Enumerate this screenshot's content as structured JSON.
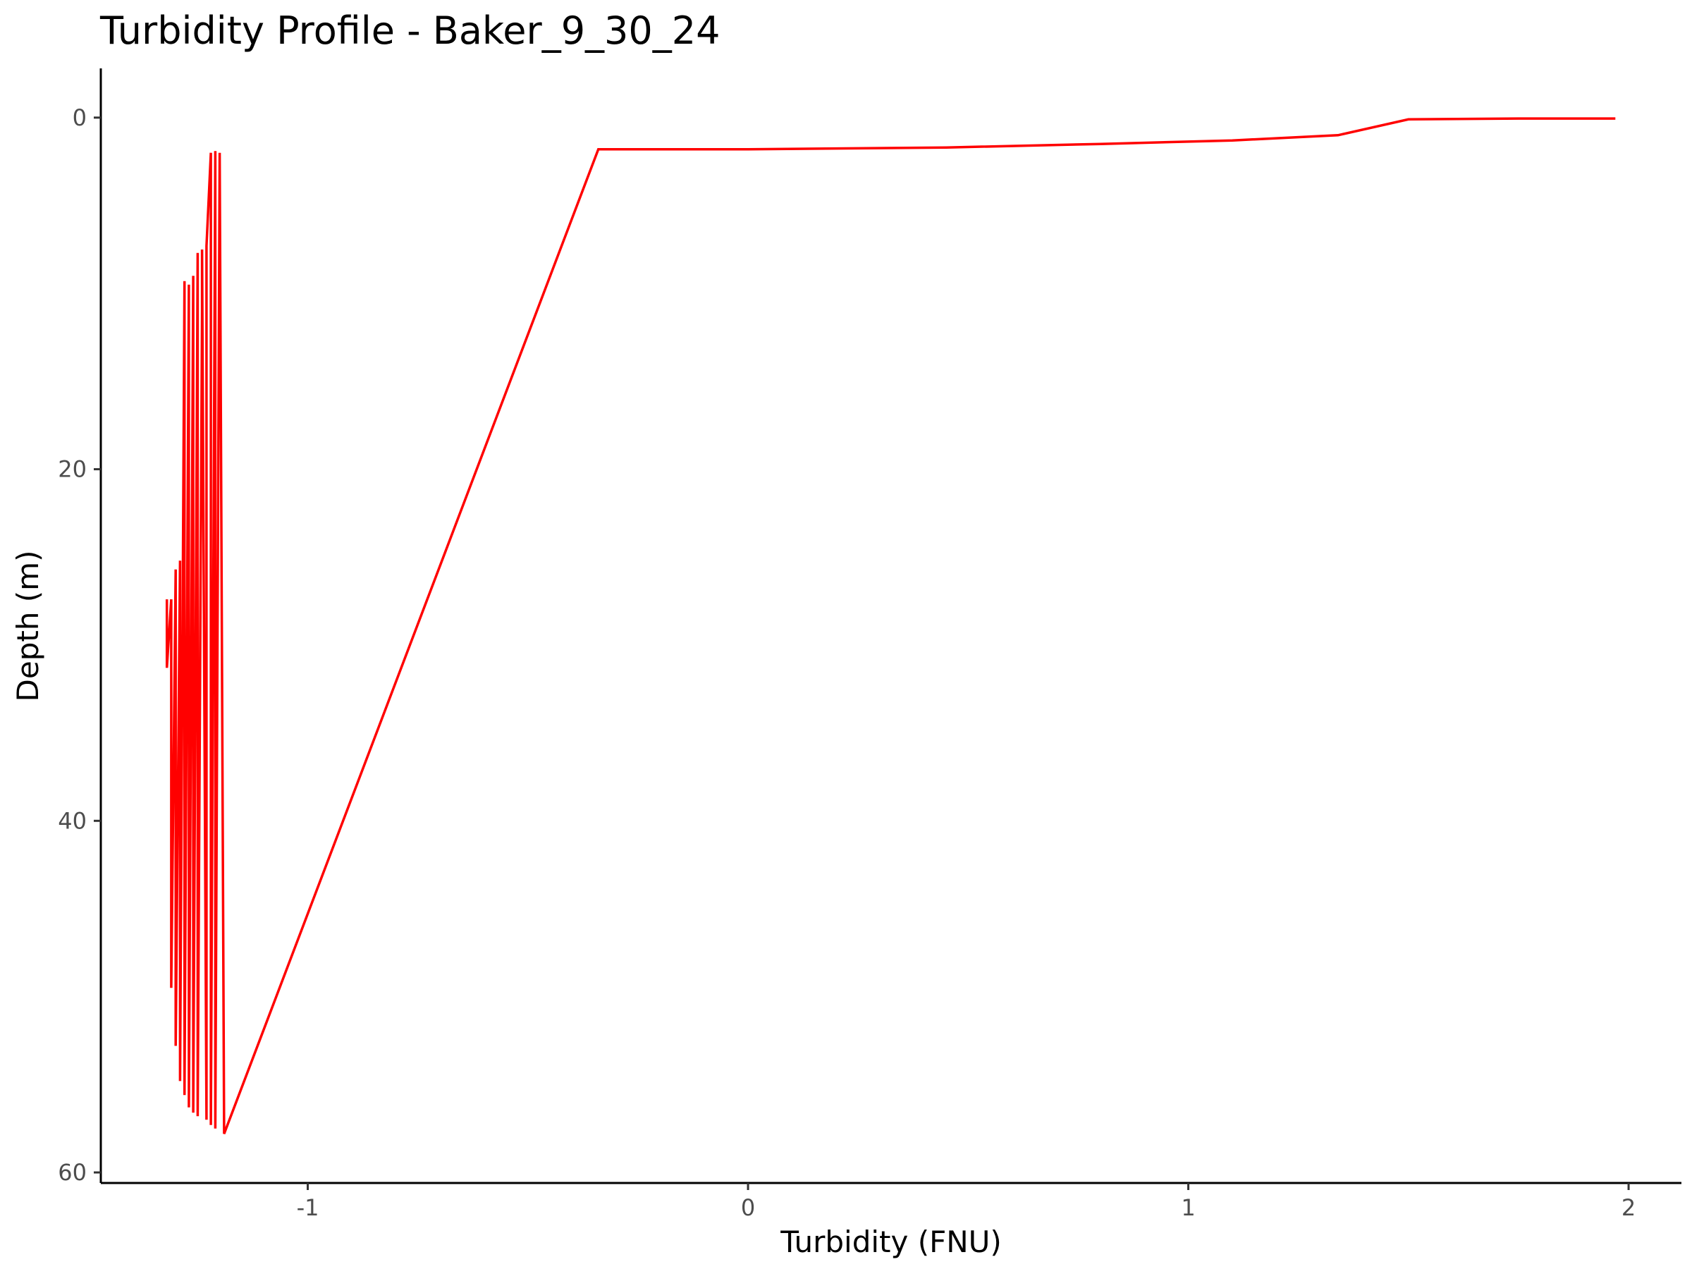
{
  "chart_data": {
    "type": "line",
    "title": "Turbidity Profile - Baker_9_30_24",
    "xlabel": "Turbidity (FNU)",
    "ylabel": "Depth (m)",
    "xlim": [
      -1.47,
      2.12
    ],
    "ylim": [
      -2.8,
      60.6
    ],
    "y_reversed": true,
    "grid": false,
    "x_ticks": [
      {
        "value": -1,
        "label": "-1"
      },
      {
        "value": 0,
        "label": "0"
      },
      {
        "value": 1,
        "label": "1"
      },
      {
        "value": 2,
        "label": "2"
      }
    ],
    "y_ticks": [
      {
        "value": 0,
        "label": "0"
      },
      {
        "value": 20,
        "label": "20"
      },
      {
        "value": 40,
        "label": "40"
      },
      {
        "value": 60,
        "label": "60"
      }
    ],
    "line_color": "#ff0000",
    "series": [
      {
        "points": [
          {
            "x": 1.97,
            "y": 0.05
          },
          {
            "x": 1.75,
            "y": 0.05
          },
          {
            "x": 1.5,
            "y": 0.1
          },
          {
            "x": 1.34,
            "y": 1.0
          },
          {
            "x": 1.1,
            "y": 1.3
          },
          {
            "x": 0.8,
            "y": 1.5
          },
          {
            "x": 0.45,
            "y": 1.7
          },
          {
            "x": 0.0,
            "y": 1.8
          },
          {
            "x": -0.34,
            "y": 1.8
          },
          {
            "x": -1.19,
            "y": 57.8
          },
          {
            "x": -1.2,
            "y": 2.0
          },
          {
            "x": -1.21,
            "y": 57.5
          },
          {
            "x": -1.21,
            "y": 1.9
          },
          {
            "x": -1.22,
            "y": 57.3
          },
          {
            "x": -1.22,
            "y": 2.0
          },
          {
            "x": -1.23,
            "y": 7.3
          },
          {
            "x": -1.23,
            "y": 57.0
          },
          {
            "x": -1.24,
            "y": 7.5
          },
          {
            "x": -1.24,
            "y": 11.0
          },
          {
            "x": -1.25,
            "y": 56.8
          },
          {
            "x": -1.25,
            "y": 7.7
          },
          {
            "x": -1.26,
            "y": 56.6
          },
          {
            "x": -1.26,
            "y": 9.0
          },
          {
            "x": -1.27,
            "y": 56.3
          },
          {
            "x": -1.27,
            "y": 9.5
          },
          {
            "x": -1.28,
            "y": 55.6
          },
          {
            "x": -1.28,
            "y": 9.3
          },
          {
            "x": -1.29,
            "y": 54.8
          },
          {
            "x": -1.29,
            "y": 25.2
          },
          {
            "x": -1.3,
            "y": 52.8
          },
          {
            "x": -1.3,
            "y": 25.7
          },
          {
            "x": -1.31,
            "y": 49.5
          },
          {
            "x": -1.31,
            "y": 27.4
          },
          {
            "x": -1.32,
            "y": 31.3
          },
          {
            "x": -1.32,
            "y": 27.4
          }
        ]
      }
    ]
  }
}
